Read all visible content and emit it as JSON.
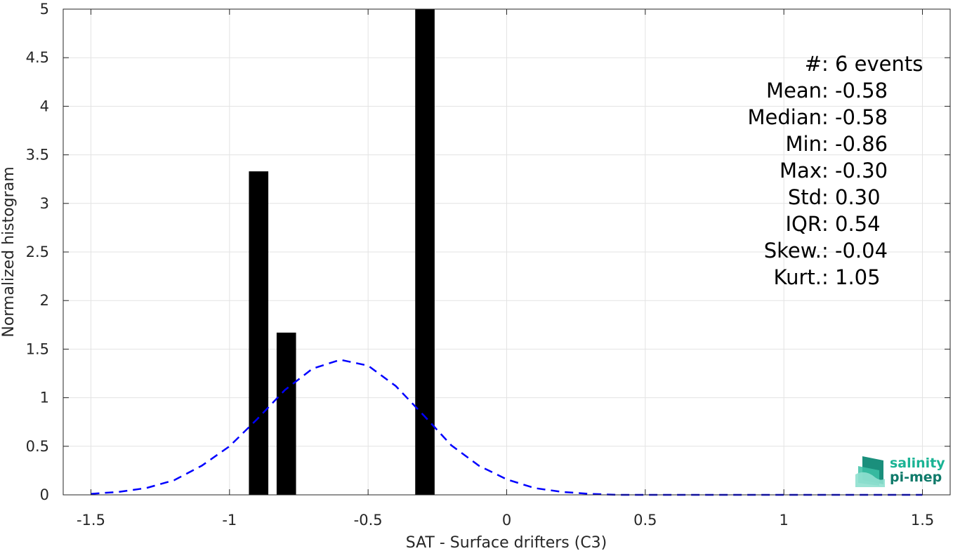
{
  "chart_data": {
    "type": "bar",
    "xlabel": "SAT - Surface drifters (C3)",
    "ylabel": "Normalized histogram",
    "xlim": [
      -1.6,
      1.6
    ],
    "ylim": [
      0,
      5
    ],
    "xticks": [
      -1.5,
      -1,
      -0.5,
      0,
      0.5,
      1,
      1.5
    ],
    "xtick_labels": [
      "-1.5",
      "-1",
      "-0.5",
      "0",
      "0.5",
      "1",
      "1.5"
    ],
    "yticks": [
      0,
      0.5,
      1,
      1.5,
      2,
      2.5,
      3,
      3.5,
      4,
      4.5,
      5
    ],
    "ytick_labels": [
      "0",
      "0.5",
      "1",
      "1.5",
      "2",
      "2.5",
      "3",
      "3.5",
      "4",
      "4.5",
      "5"
    ],
    "grid": true,
    "bars": [
      {
        "x_start": -0.93,
        "x_end": -0.86,
        "value": 3.33
      },
      {
        "x_start": -0.83,
        "x_end": -0.76,
        "value": 1.67
      },
      {
        "x_start": -0.33,
        "x_end": -0.26,
        "value": 5.0
      }
    ],
    "bar_color": "#000000",
    "fit_curve": {
      "style": "dashed",
      "color": "#0000ff",
      "x": [
        -1.5,
        -1.4,
        -1.3,
        -1.2,
        -1.1,
        -1.0,
        -0.9,
        -0.8,
        -0.7,
        -0.6,
        -0.5,
        -0.4,
        -0.3,
        -0.2,
        -0.1,
        0.0,
        0.1,
        0.2,
        0.3,
        0.4,
        0.5,
        0.6,
        0.7,
        0.8,
        0.9,
        1.0,
        1.1,
        1.2,
        1.3,
        1.4,
        1.5
      ],
      "y": [
        0.01,
        0.03,
        0.07,
        0.15,
        0.3,
        0.5,
        0.78,
        1.08,
        1.3,
        1.39,
        1.33,
        1.12,
        0.82,
        0.51,
        0.3,
        0.16,
        0.07,
        0.03,
        0.01,
        0.0,
        0.0,
        0.0,
        0.0,
        0.0,
        0.0,
        0.0,
        0.0,
        0.0,
        0.0,
        0.0,
        0.0
      ]
    },
    "stats": [
      {
        "label": "#  ",
        "value": ": 6 events"
      },
      {
        "label": "Mean ",
        "value": ": -0.58"
      },
      {
        "label": "Median ",
        "value": ": -0.58"
      },
      {
        "label": "Min ",
        "value": ": -0.86"
      },
      {
        "label": "Max ",
        "value": ": -0.30"
      },
      {
        "label": "Std ",
        "value": ": 0.30"
      },
      {
        "label": "IQR ",
        "value": ": 0.54"
      },
      {
        "label": "Skew. ",
        "value": ": -0.04"
      },
      {
        "label": "Kurt. ",
        "value": ": 1.05"
      }
    ]
  },
  "logo": {
    "line1": "salinity",
    "line2": "pi-mep",
    "color1": "#1ab394",
    "color2": "#0f7a6a"
  }
}
